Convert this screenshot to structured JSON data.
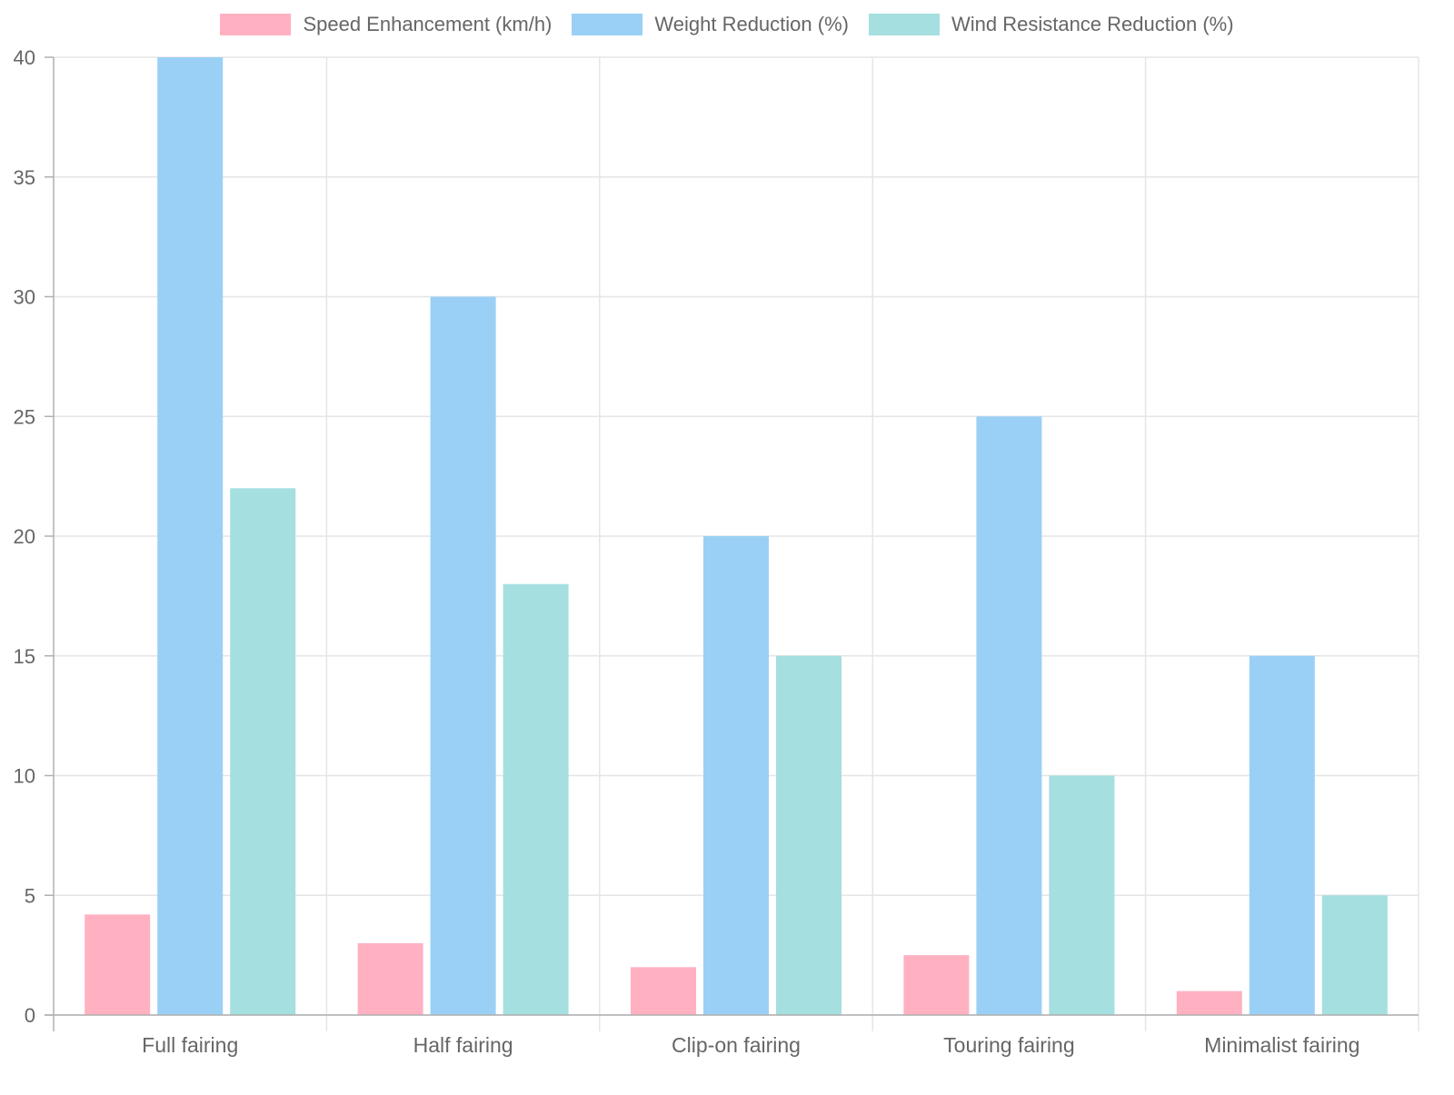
{
  "chart_data": {
    "type": "bar",
    "categories": [
      "Full fairing",
      "Half fairing",
      "Clip-on fairing",
      "Touring fairing",
      "Minimalist fairing"
    ],
    "series": [
      {
        "name": "Speed Enhancement (km/h)",
        "values": [
          4.2,
          3.0,
          2.0,
          2.5,
          1.0
        ],
        "color": "#ffb1c1"
      },
      {
        "name": "Weight Reduction (%)",
        "values": [
          40,
          30,
          20,
          25,
          15
        ],
        "color": "#9ad0f5"
      },
      {
        "name": "Wind Resistance Reduction (%)",
        "values": [
          22,
          18,
          15,
          10,
          5
        ],
        "color": "#a5dfdf"
      }
    ],
    "ylim": [
      0,
      40
    ],
    "yticks": [
      0,
      5,
      10,
      15,
      20,
      25,
      30,
      35,
      40
    ],
    "grid": true,
    "legend_position": "top-center"
  }
}
